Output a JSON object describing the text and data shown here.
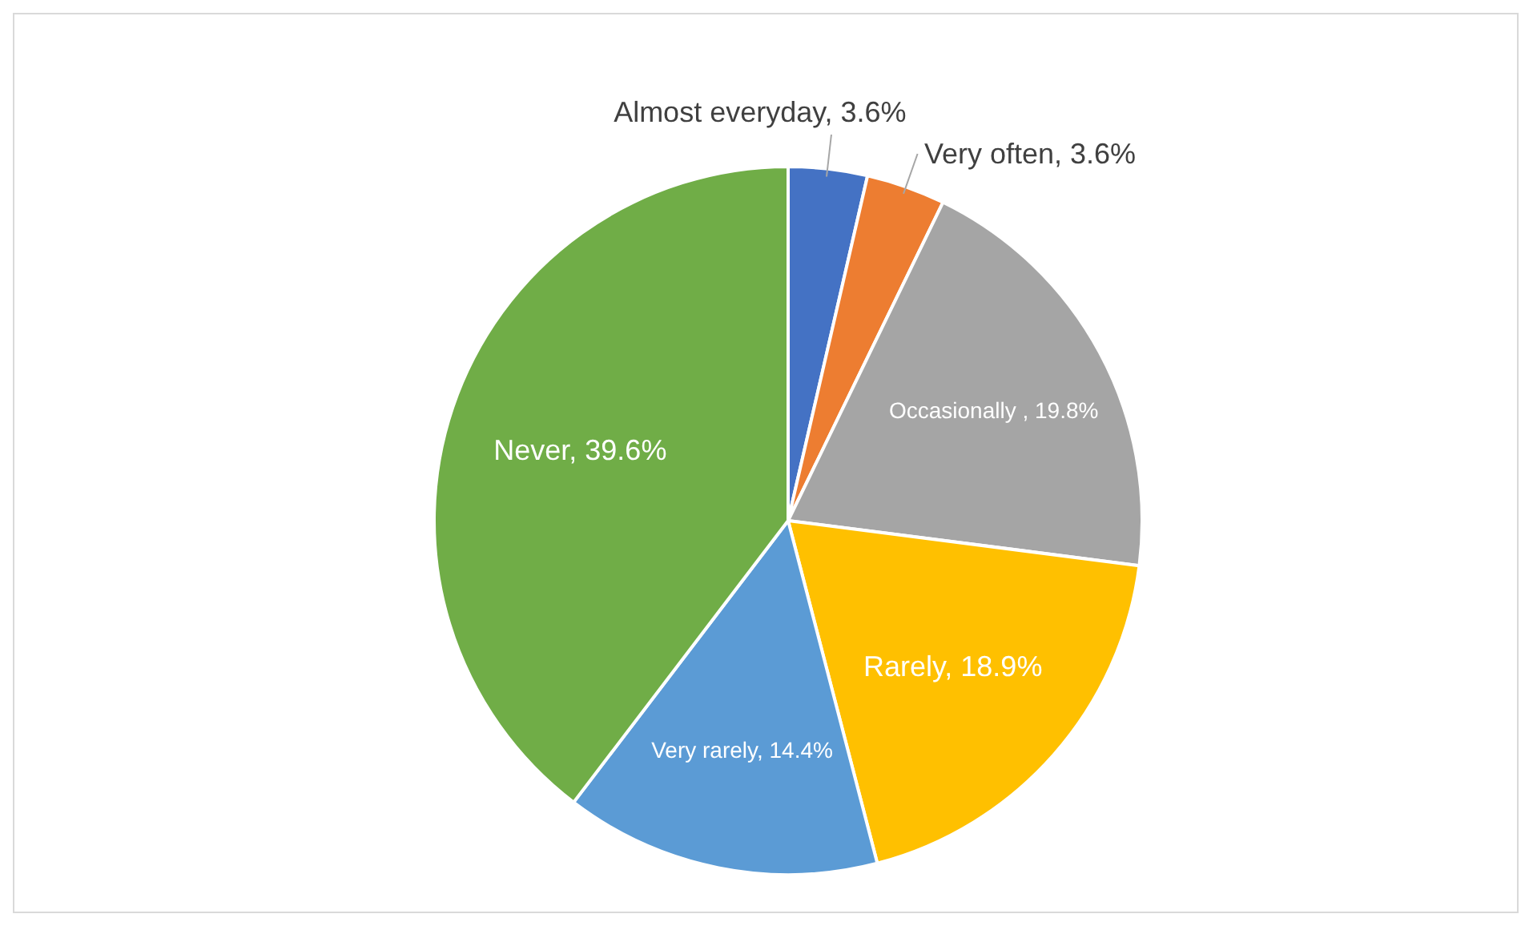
{
  "chart_data": {
    "type": "pie",
    "categories": [
      "Almost everyday",
      "Very often",
      "Occasionally ",
      "Rarely",
      "Very rarely",
      "Never"
    ],
    "values": [
      3.6,
      3.6,
      19.8,
      18.9,
      14.4,
      39.6
    ],
    "value_labels": [
      "3.6%",
      "3.6%",
      "19.8%",
      "18.9%",
      "14.4%",
      "39.6%"
    ],
    "colors": [
      "#4472c4",
      "#ed7d31",
      "#a5a5a5",
      "#ffc000",
      "#5b9bd5",
      "#70ad47"
    ],
    "legend": false
  }
}
